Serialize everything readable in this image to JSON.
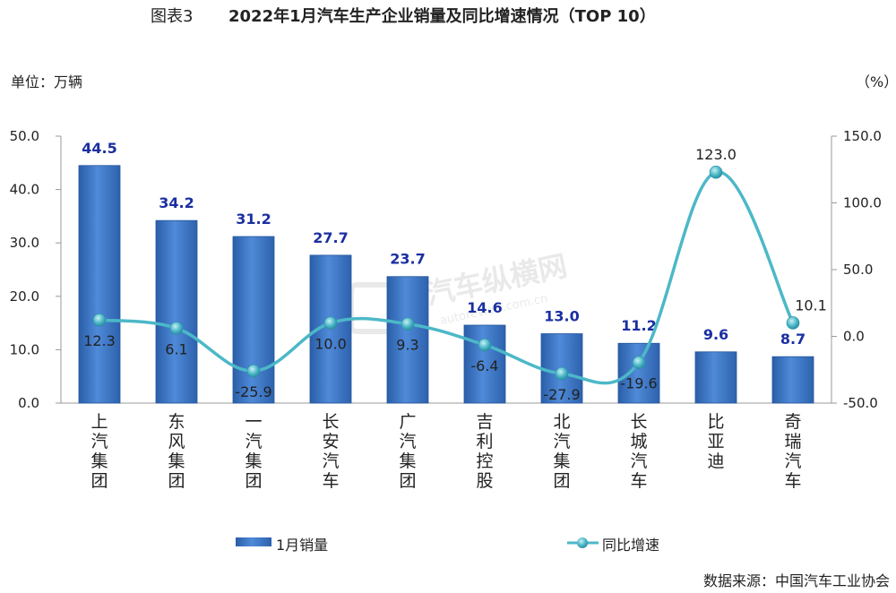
{
  "title_prefix": "图表3",
  "title_main": "2022年1月汽车生产企业销量及同比增速情况（TOP 10）",
  "left_unit": "单位：万辆",
  "right_unit": "（%）",
  "source": "数据来源：中国汽车工业协会",
  "watermark_text": "汽车纵横网",
  "watermark_url": "autoreview.com.cn",
  "colors": {
    "bar": "#3b74c4",
    "bar_dark": "#1f4e96",
    "bar_label": "#1b2fa0",
    "line": "#4cb8c8",
    "marker": "#3fa9bd",
    "axis": "#999999"
  },
  "chart_data": {
    "type": "bar+line",
    "categories": [
      "上汽集团",
      "东风集团",
      "一汽集团",
      "长安汽车",
      "广汽集团",
      "吉利控股",
      "北汽集团",
      "长城汽车",
      "比亚迪",
      "奇瑞汽车"
    ],
    "series": [
      {
        "name": "1月销量",
        "type": "bar",
        "axis": "left",
        "values": [
          44.5,
          34.2,
          31.2,
          27.7,
          23.7,
          14.6,
          13.0,
          11.2,
          9.6,
          8.7
        ]
      },
      {
        "name": "同比增速",
        "type": "line",
        "axis": "right",
        "values": [
          12.3,
          6.1,
          -25.9,
          10.0,
          9.3,
          -6.4,
          -27.9,
          -19.6,
          123.0,
          10.1
        ]
      }
    ],
    "y_left": {
      "min": 0,
      "max": 50,
      "ticks": [
        "0.0",
        "10.0",
        "20.0",
        "30.0",
        "40.0",
        "50.0"
      ]
    },
    "y_right": {
      "min": -50,
      "max": 150,
      "ticks": [
        "-50.0",
        "0.0",
        "50.0",
        "100.0",
        "150.0"
      ]
    },
    "bar_labels": [
      "44.5",
      "34.2",
      "31.2",
      "27.7",
      "23.7",
      "14.6",
      "13.0",
      "11.2",
      "9.6",
      "8.7"
    ],
    "line_labels": [
      "12.3",
      "6.1",
      "-25.9",
      "10.0",
      "9.3",
      "-6.4",
      "-27.9",
      "-19.6",
      "123.0",
      "10.1"
    ],
    "legend": [
      "1月销量",
      "同比增速"
    ],
    "legend_position": "bottom"
  }
}
